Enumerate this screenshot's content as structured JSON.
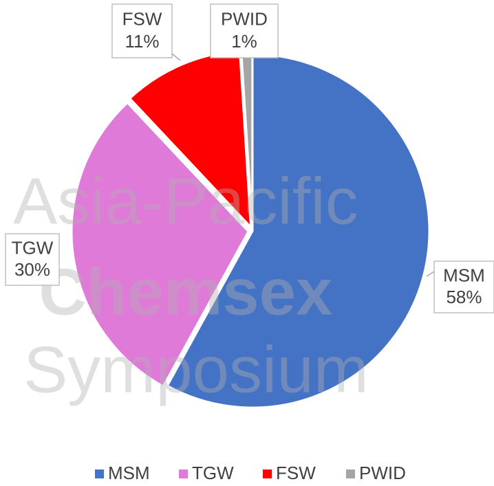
{
  "chart_data": {
    "type": "pie",
    "categories": [
      "MSM",
      "TGW",
      "FSW",
      "PWID"
    ],
    "values": [
      58,
      30,
      11,
      1
    ],
    "value_labels": [
      "58%",
      "30%",
      "11%",
      "1%"
    ],
    "colors": [
      "#4472c4",
      "#e07ad8",
      "#ff0000",
      "#a5a5a5"
    ],
    "legend": "bottom"
  },
  "watermark": [
    "Asia-Pacific",
    "Chemsex",
    "Symposium"
  ]
}
